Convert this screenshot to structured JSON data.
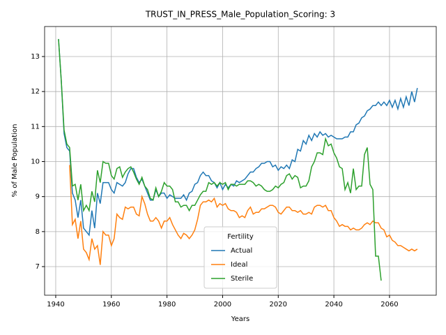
{
  "chart_data": {
    "type": "line",
    "title": "TRUST_IN_PRESS_Male_Population_Scoring: 3",
    "xlabel": "Years",
    "ylabel": "% of Male Population",
    "legend_title": "Fertility",
    "legend": "lower center",
    "grid": true,
    "xlim": [
      1936.0,
      2076.8
    ],
    "ylim": [
      6.183,
      13.857
    ],
    "xticks": [
      1940,
      1960,
      1980,
      2000,
      2020,
      2040,
      2060
    ],
    "yticks": [
      7,
      8,
      9,
      10,
      11,
      12,
      13
    ],
    "x": [
      1941,
      1942,
      1943,
      1944,
      1945,
      1946,
      1947,
      1948,
      1949,
      1950,
      1951,
      1952,
      1953,
      1954,
      1955,
      1956,
      1957,
      1958,
      1959,
      1960,
      1961,
      1962,
      1963,
      1964,
      1965,
      1966,
      1967,
      1968,
      1969,
      1970,
      1971,
      1972,
      1973,
      1974,
      1975,
      1976,
      1977,
      1978,
      1979,
      1980,
      1981,
      1982,
      1983,
      1984,
      1985,
      1986,
      1987,
      1988,
      1989,
      1990,
      1991,
      1992,
      1993,
      1994,
      1995,
      1996,
      1997,
      1998,
      1999,
      2000,
      2001,
      2002,
      2003,
      2004,
      2005,
      2006,
      2007,
      2008,
      2009,
      2010,
      2011,
      2012,
      2013,
      2014,
      2015,
      2016,
      2017,
      2018,
      2019,
      2020,
      2021,
      2022,
      2023,
      2024,
      2025,
      2026,
      2027,
      2028,
      2029,
      2030,
      2031,
      2032,
      2033,
      2034,
      2035,
      2036,
      2037,
      2038,
      2039,
      2040,
      2041,
      2042,
      2043,
      2044,
      2045,
      2046,
      2047,
      2048,
      2049,
      2050,
      2051,
      2052,
      2053,
      2054,
      2055,
      2056,
      2057,
      2058,
      2059,
      2060,
      2061,
      2062,
      2063,
      2064,
      2065,
      2066,
      2067,
      2068,
      2069,
      2070
    ],
    "series": [
      {
        "name": "Actual",
        "color": "#1f77b4",
        "values": [
          13.5,
          12.3,
          10.8,
          10.4,
          10.3,
          9.1,
          8.9,
          8.4,
          8.9,
          8.1,
          8.0,
          7.9,
          8.6,
          8.1,
          9.1,
          8.8,
          9.4,
          9.4,
          9.4,
          9.2,
          9.1,
          9.4,
          9.35,
          9.3,
          9.4,
          9.65,
          9.8,
          9.8,
          9.55,
          9.4,
          9.5,
          9.3,
          9.1,
          8.9,
          8.9,
          9.2,
          9.0,
          9.1,
          9.1,
          8.95,
          9.05,
          9.0,
          8.95,
          8.95,
          8.95,
          9.05,
          8.9,
          9.1,
          9.15,
          9.35,
          9.4,
          9.6,
          9.7,
          9.6,
          9.6,
          9.45,
          9.4,
          9.25,
          9.4,
          9.2,
          9.35,
          9.25,
          9.35,
          9.3,
          9.45,
          9.4,
          9.45,
          9.5,
          9.6,
          9.7,
          9.7,
          9.8,
          9.85,
          9.95,
          9.95,
          10.0,
          10.0,
          9.85,
          9.9,
          9.75,
          9.85,
          9.8,
          9.9,
          9.8,
          10.05,
          10.0,
          10.35,
          10.3,
          10.6,
          10.5,
          10.75,
          10.6,
          10.8,
          10.7,
          10.85,
          10.75,
          10.8,
          10.7,
          10.75,
          10.7,
          10.65,
          10.65,
          10.65,
          10.7,
          10.7,
          10.85,
          10.85,
          11.05,
          11.1,
          11.25,
          11.3,
          11.45,
          11.5,
          11.6,
          11.6,
          11.7,
          11.6,
          11.7,
          11.6,
          11.75,
          11.55,
          11.75,
          11.5,
          11.8,
          11.55,
          11.85,
          11.6,
          12.0,
          11.7,
          12.1
        ]
      },
      {
        "name": "Ideal",
        "color": "#ff7f0e",
        "values": [
          null,
          null,
          null,
          null,
          9.9,
          8.2,
          8.35,
          7.8,
          8.3,
          7.5,
          7.4,
          7.2,
          7.8,
          7.5,
          7.6,
          7.05,
          8.0,
          7.9,
          7.9,
          7.6,
          7.8,
          8.5,
          8.4,
          8.35,
          8.7,
          8.65,
          8.7,
          8.7,
          8.5,
          8.45,
          9.0,
          8.8,
          8.5,
          8.3,
          8.3,
          8.4,
          8.3,
          8.1,
          8.3,
          8.3,
          8.4,
          8.2,
          8.05,
          7.9,
          7.8,
          7.95,
          7.9,
          7.8,
          7.9,
          8.05,
          8.35,
          8.75,
          8.85,
          8.85,
          8.9,
          8.85,
          8.95,
          8.7,
          8.8,
          8.75,
          8.8,
          8.65,
          8.6,
          8.6,
          8.55,
          8.4,
          8.45,
          8.4,
          8.6,
          8.7,
          8.5,
          8.55,
          8.55,
          8.65,
          8.65,
          8.7,
          8.75,
          8.75,
          8.7,
          8.55,
          8.5,
          8.6,
          8.7,
          8.7,
          8.6,
          8.6,
          8.55,
          8.6,
          8.5,
          8.5,
          8.55,
          8.5,
          8.7,
          8.75,
          8.75,
          8.7,
          8.75,
          8.6,
          8.6,
          8.4,
          8.3,
          8.15,
          8.2,
          8.15,
          8.15,
          8.05,
          8.1,
          8.05,
          8.05,
          8.1,
          8.2,
          8.25,
          8.2,
          8.3,
          8.25,
          8.25,
          8.1,
          8.05,
          7.85,
          7.9,
          7.75,
          7.7,
          7.6,
          7.6,
          7.55,
          7.5,
          7.45,
          7.5,
          7.45,
          7.5
        ]
      },
      {
        "name": "Sterile",
        "color": "#2ca02c",
        "values": [
          13.5,
          12.3,
          10.9,
          10.5,
          10.4,
          9.3,
          9.35,
          8.9,
          9.35,
          8.6,
          8.75,
          8.6,
          9.15,
          8.85,
          9.75,
          9.4,
          10.0,
          9.95,
          9.95,
          9.6,
          9.5,
          9.8,
          9.85,
          9.55,
          9.7,
          9.8,
          9.85,
          9.7,
          9.5,
          9.35,
          9.55,
          9.3,
          9.2,
          8.95,
          8.9,
          9.25,
          9.0,
          9.15,
          9.4,
          9.3,
          9.3,
          9.2,
          8.85,
          8.85,
          8.7,
          8.75,
          8.75,
          8.6,
          8.75,
          8.75,
          8.9,
          9.05,
          9.15,
          9.15,
          9.4,
          9.35,
          9.4,
          9.3,
          9.4,
          9.35,
          9.4,
          9.2,
          9.35,
          9.35,
          9.3,
          9.35,
          9.35,
          9.35,
          9.45,
          9.45,
          9.4,
          9.3,
          9.35,
          9.3,
          9.2,
          9.15,
          9.15,
          9.2,
          9.3,
          9.25,
          9.35,
          9.4,
          9.6,
          9.65,
          9.5,
          9.6,
          9.55,
          9.25,
          9.3,
          9.3,
          9.45,
          9.85,
          10.0,
          10.25,
          10.25,
          10.2,
          10.65,
          10.45,
          10.5,
          10.25,
          10.1,
          9.85,
          9.8,
          9.2,
          9.4,
          9.1,
          9.8,
          9.2,
          9.3,
          9.3,
          10.2,
          10.4,
          9.35,
          9.2,
          7.3,
          7.3,
          6.6,
          null,
          null,
          null,
          null,
          null,
          null,
          null,
          null,
          null,
          null,
          null,
          null,
          null
        ]
      }
    ]
  }
}
